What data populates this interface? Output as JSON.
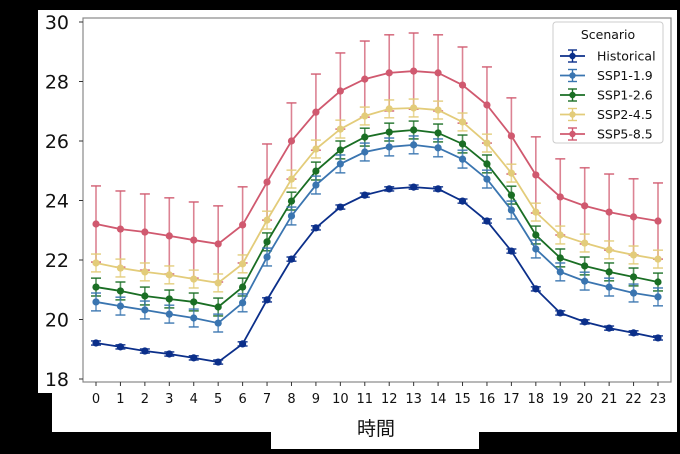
{
  "chart_data": {
    "type": "line",
    "title": "",
    "xlabel": "時間",
    "ylabel": "",
    "ylim": [
      18,
      30
    ],
    "yticks": [
      18,
      20,
      22,
      24,
      26,
      28,
      30
    ],
    "x": [
      0,
      1,
      2,
      3,
      4,
      5,
      6,
      7,
      8,
      9,
      10,
      11,
      12,
      13,
      14,
      15,
      16,
      17,
      18,
      19,
      20,
      21,
      22,
      23
    ],
    "grid": false,
    "legend": {
      "title": "Scenario",
      "position": "upper right"
    },
    "series": [
      {
        "name": "Historical",
        "color": "#0b2f8a",
        "values": [
          19.21,
          19.08,
          18.94,
          18.84,
          18.71,
          18.57,
          19.18,
          20.66,
          22.03,
          23.08,
          23.78,
          24.18,
          24.39,
          24.45,
          24.39,
          23.98,
          23.31,
          22.3,
          21.03,
          20.22,
          19.92,
          19.71,
          19.55,
          19.38
        ],
        "error": 0.07
      },
      {
        "name": "SSP1-1.9",
        "color": "#3a75b0",
        "values": [
          20.59,
          20.45,
          20.32,
          20.18,
          20.05,
          19.88,
          20.56,
          22.1,
          23.48,
          24.52,
          25.23,
          25.63,
          25.8,
          25.87,
          25.77,
          25.39,
          24.72,
          23.68,
          22.37,
          21.6,
          21.29,
          21.09,
          20.89,
          20.76
        ],
        "error": 0.3
      },
      {
        "name": "SSP1-2.6",
        "color": "#1a6e24",
        "values": [
          21.09,
          20.96,
          20.79,
          20.69,
          20.59,
          20.42,
          21.09,
          22.61,
          23.98,
          24.99,
          25.7,
          26.13,
          26.3,
          26.37,
          26.27,
          25.9,
          25.23,
          24.18,
          22.84,
          22.07,
          21.8,
          21.6,
          21.43,
          21.26
        ],
        "error": 0.3
      },
      {
        "name": "SSP2-4.5",
        "color": "#e3cc7a",
        "values": [
          21.9,
          21.73,
          21.6,
          21.5,
          21.36,
          21.23,
          21.87,
          23.34,
          24.72,
          25.73,
          26.4,
          26.84,
          27.08,
          27.11,
          27.04,
          26.64,
          25.93,
          24.92,
          23.61,
          22.84,
          22.57,
          22.34,
          22.17,
          22.03
        ],
        "error": 0.3
      },
      {
        "name": "SSP5-8.5",
        "color": "#d0596f",
        "values": [
          23.21,
          23.04,
          22.94,
          22.81,
          22.67,
          22.54,
          23.18,
          24.62,
          26.0,
          26.97,
          27.68,
          28.08,
          28.29,
          28.35,
          28.29,
          27.88,
          27.21,
          26.17,
          24.86,
          24.12,
          23.82,
          23.61,
          23.45,
          23.31
        ],
        "error": 1.28
      }
    ]
  }
}
